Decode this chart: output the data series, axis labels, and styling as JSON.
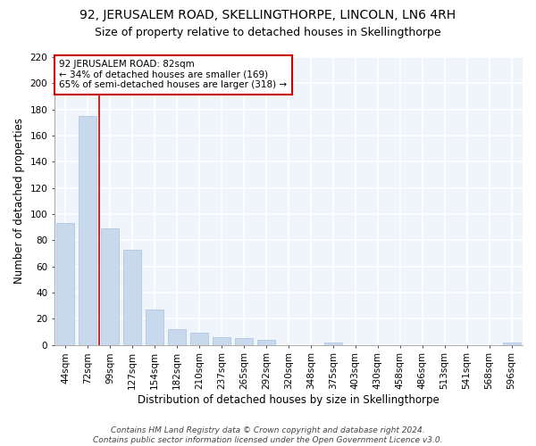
{
  "title": "92, JERUSALEM ROAD, SKELLINGTHORPE, LINCOLN, LN6 4RH",
  "subtitle": "Size of property relative to detached houses in Skellingthorpe",
  "xlabel": "Distribution of detached houses by size in Skellingthorpe",
  "ylabel": "Number of detached properties",
  "categories": [
    "44sqm",
    "72sqm",
    "99sqm",
    "127sqm",
    "154sqm",
    "182sqm",
    "210sqm",
    "237sqm",
    "265sqm",
    "292sqm",
    "320sqm",
    "348sqm",
    "375sqm",
    "403sqm",
    "430sqm",
    "458sqm",
    "486sqm",
    "513sqm",
    "541sqm",
    "568sqm",
    "596sqm"
  ],
  "values": [
    93,
    175,
    89,
    73,
    27,
    12,
    9,
    6,
    5,
    4,
    0,
    0,
    2,
    0,
    0,
    0,
    0,
    0,
    0,
    0,
    2
  ],
  "bar_color": "#c8d9ee",
  "bar_edge_color": "#a8c0de",
  "vline_color": "#cc0000",
  "vline_x": 1.5,
  "annotation_text": "92 JERUSALEM ROAD: 82sqm\n← 34% of detached houses are smaller (169)\n65% of semi-detached houses are larger (318) →",
  "annotation_box_color": "#ffffff",
  "annotation_box_edge": "#cc0000",
  "ylim": [
    0,
    220
  ],
  "yticks": [
    0,
    20,
    40,
    60,
    80,
    100,
    120,
    140,
    160,
    180,
    200,
    220
  ],
  "footer": "Contains HM Land Registry data © Crown copyright and database right 2024.\nContains public sector information licensed under the Open Government Licence v3.0.",
  "bg_color": "#ffffff",
  "plot_bg_color": "#f0f4fb",
  "grid_color": "#ffffff",
  "title_fontsize": 10,
  "subtitle_fontsize": 9,
  "axis_label_fontsize": 8.5,
  "tick_fontsize": 7.5,
  "annotation_fontsize": 7.5,
  "footer_fontsize": 6.5
}
